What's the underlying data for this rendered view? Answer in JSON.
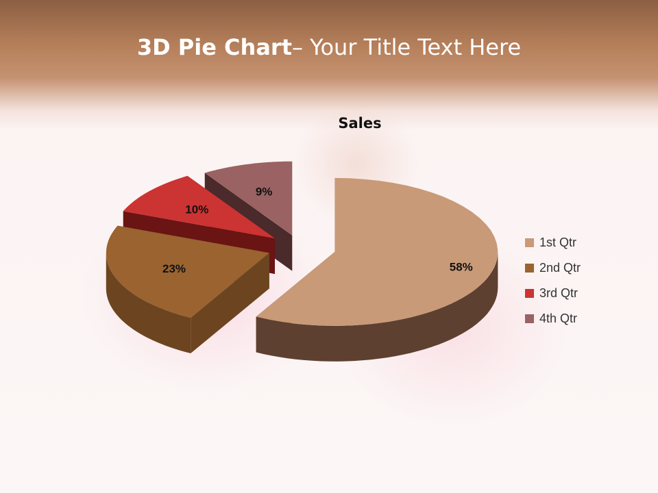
{
  "slide": {
    "title_bold": "3D Pie Chart",
    "title_rest": "– Your Title Text Here"
  },
  "chart_data": {
    "type": "pie",
    "style": "3d-exploded",
    "title": "Sales",
    "categories": [
      "1st Qtr",
      "2nd Qtr",
      "3rd Qtr",
      "4th Qtr"
    ],
    "values": [
      58,
      23,
      10,
      9
    ],
    "data_labels": [
      "58%",
      "23%",
      "10%",
      "9%"
    ],
    "colors": [
      "#c99a78",
      "#9a6330",
      "#cc3333",
      "#9a6262"
    ],
    "side_colors": [
      "#5e4030",
      "#6c4520",
      "#6a1414",
      "#4a2a2a"
    ],
    "legend_position": "right"
  }
}
